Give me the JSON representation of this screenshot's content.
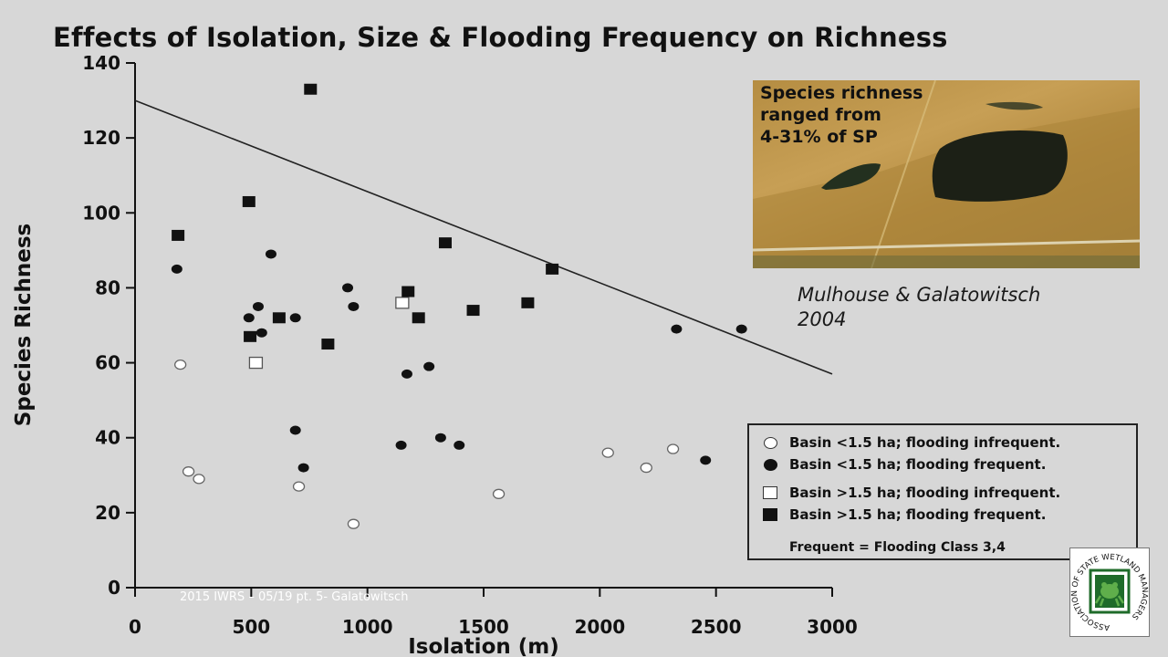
{
  "chart_data": {
    "type": "scatter",
    "title": "Effects of Isolation, Size & Flooding Frequency on Richness",
    "xlabel": "Isolation (m)",
    "ylabel": "Species Richness",
    "xlim": [
      0,
      3000
    ],
    "ylim": [
      0,
      140
    ],
    "xticks": [
      "0",
      "500",
      "1000",
      "1500",
      "2000",
      "2500",
      "3000"
    ],
    "yticks": [
      "0",
      "20",
      "40",
      "60",
      "80",
      "100",
      "120",
      "140"
    ],
    "grid": false,
    "legend_position": "bottom-right",
    "trend_line": {
      "x": [
        0,
        3000
      ],
      "y": [
        130,
        57
      ]
    },
    "series": [
      {
        "name": "Basin <1.5 ha; flooding infrequent.",
        "marker": "open-circle",
        "x": [
          195,
          230,
          275,
          705,
          940,
          1565,
          2035,
          2200,
          2315
        ],
        "y": [
          59.5,
          31,
          29,
          27,
          17,
          25,
          36,
          32,
          37
        ]
      },
      {
        "name": "Basin <1.5 ha; flooding frequent.",
        "marker": "filled-circle",
        "x": [
          180,
          490,
          530,
          545,
          585,
          690,
          915,
          940,
          690,
          725,
          1145,
          1170,
          1265,
          1315,
          1395,
          2330,
          2455,
          2610
        ],
        "y": [
          85,
          72,
          75,
          68,
          89,
          72,
          80,
          75,
          42,
          32,
          38,
          57,
          59,
          40,
          38,
          69,
          34,
          69
        ]
      },
      {
        "name": "Basin >1.5 ha; flooding infrequent.",
        "marker": "open-square",
        "x": [
          520,
          1150
        ],
        "y": [
          60,
          76
        ]
      },
      {
        "name": "Basin >1.5 ha; flooding frequent.",
        "marker": "filled-square",
        "x": [
          185,
          490,
          495,
          620,
          755,
          830,
          1175,
          1220,
          1335,
          1455,
          1690,
          1795
        ],
        "y": [
          94,
          103,
          67,
          72,
          133,
          65,
          79,
          72,
          92,
          74,
          76,
          85
        ]
      }
    ]
  },
  "legend": {
    "items": [
      {
        "label": "Basin <1.5 ha; flooding infrequent.",
        "symbol": "open-circle"
      },
      {
        "label": "Basin <1.5 ha; flooding frequent.",
        "symbol": "filled-circle"
      },
      {
        "label": "Basin >1.5 ha; flooding infrequent.",
        "symbol": "open-square"
      },
      {
        "label": "Basin >1.5 ha; flooding frequent.",
        "symbol": "filled-square"
      }
    ],
    "note": "Frequent = Flooding Class 3,4"
  },
  "photo": {
    "caption": "Species richness\nranged from\n4-31% of SP"
  },
  "citation": "Mulhouse & Galatowitsch\n2004",
  "footer": "2015 IWRS – 05/19 pt. 5- Galatowitsch",
  "logo": {
    "ring_text": "ASSOCIATION OF STATE WETLAND MANAGERS",
    "icon": "frog-icon",
    "color": "#1f6b2a"
  }
}
